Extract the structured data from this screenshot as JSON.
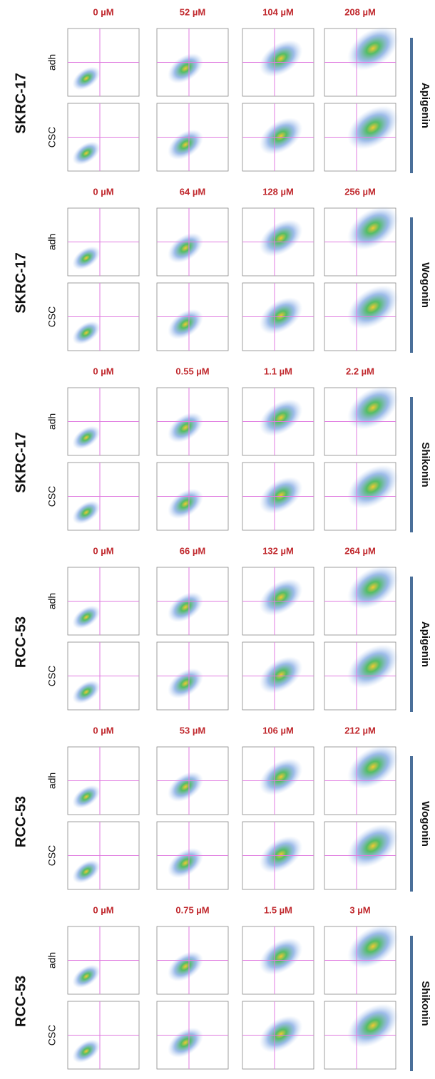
{
  "blocks": [
    {
      "cell_line": "SKRC-17",
      "drug": "Apigenin",
      "concentrations": [
        "0 µM",
        "52 µM",
        "104 µM",
        "208 µM"
      ],
      "rows": [
        "adh",
        "CSC"
      ]
    },
    {
      "cell_line": "SKRC-17",
      "drug": "Wogonin",
      "concentrations": [
        "0 µM",
        "64 µM",
        "128 µM",
        "256 µM"
      ],
      "rows": [
        "adh",
        "CSC"
      ]
    },
    {
      "cell_line": "SKRC-17",
      "drug": "Shikonin",
      "concentrations": [
        "0 µM",
        "0.55 µM",
        "1.1 µM",
        "2.2 µM"
      ],
      "rows": [
        "adh",
        "CSC"
      ]
    },
    {
      "cell_line": "RCC-53",
      "drug": "Apigenin",
      "concentrations": [
        "0 µM",
        "66 µM",
        "132 µM",
        "264 µM"
      ],
      "rows": [
        "adh",
        "CSC"
      ]
    },
    {
      "cell_line": "RCC-53",
      "drug": "Wogonin",
      "concentrations": [
        "0 µM",
        "53 µM",
        "106 µM",
        "212 µM"
      ],
      "rows": [
        "adh",
        "CSC"
      ]
    },
    {
      "cell_line": "RCC-53",
      "drug": "Shikonin",
      "concentrations": [
        "0 µM",
        "0.75 µM",
        "1.5 µM",
        "3 µM"
      ],
      "rows": [
        "adh",
        "CSC"
      ]
    }
  ]
}
